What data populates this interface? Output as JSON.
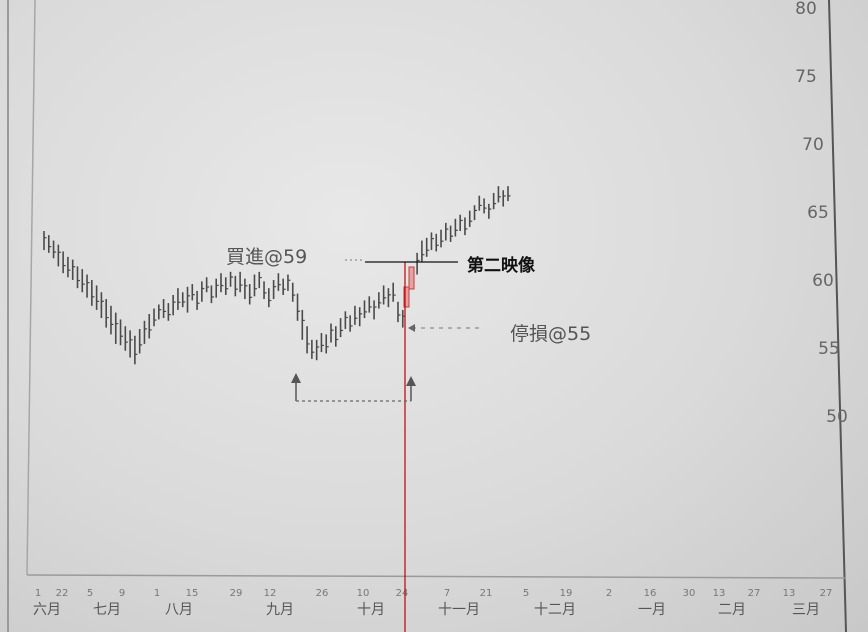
{
  "chart_data": {
    "type": "bar",
    "subtype": "daily price bars (high-low range)",
    "title": "",
    "xlabel": "",
    "ylabel": "",
    "ylim": [
      47,
      82
    ],
    "y_ticks": [
      50,
      55,
      60,
      65,
      70,
      75,
      80
    ],
    "x_tick_labels": [
      "1",
      "22",
      "5",
      "9",
      "1",
      "15",
      "29",
      "12",
      "26",
      "10",
      "24",
      "7",
      "21",
      "5",
      "19",
      "2",
      "16",
      "30",
      "13",
      "27",
      "13",
      "27"
    ],
    "month_labels": [
      "六月",
      "七月",
      "八月",
      "九月",
      "十月",
      "十一月",
      "十二月",
      "一月",
      "二月",
      "三月"
    ],
    "series": [
      {
        "values": [
          [
            63.6,
            62.2
          ],
          [
            63.3,
            62.0
          ],
          [
            62.9,
            61.6
          ],
          [
            62.6,
            61.0
          ],
          [
            62.1,
            60.5
          ],
          [
            61.7,
            60.2
          ],
          [
            61.5,
            60.0
          ],
          [
            61.0,
            59.4
          ],
          [
            60.8,
            59.1
          ],
          [
            60.4,
            58.7
          ],
          [
            60.0,
            58.1
          ],
          [
            59.6,
            57.8
          ],
          [
            59.1,
            57.2
          ],
          [
            58.6,
            56.5
          ],
          [
            58.1,
            56.0
          ],
          [
            57.6,
            55.3
          ],
          [
            57.1,
            55.2
          ],
          [
            56.6,
            54.8
          ],
          [
            56.3,
            54.3
          ],
          [
            55.9,
            53.8
          ],
          [
            56.4,
            54.6
          ],
          [
            57.0,
            55.3
          ],
          [
            57.5,
            55.7
          ],
          [
            57.9,
            56.6
          ],
          [
            58.2,
            57.1
          ],
          [
            58.6,
            57.2
          ],
          [
            58.3,
            57.0
          ],
          [
            58.9,
            57.4
          ],
          [
            59.4,
            57.8
          ],
          [
            59.1,
            58.0
          ],
          [
            59.5,
            57.6
          ],
          [
            59.7,
            58.5
          ],
          [
            59.2,
            57.8
          ],
          [
            59.9,
            58.4
          ],
          [
            60.2,
            59.1
          ],
          [
            59.6,
            58.3
          ],
          [
            60.1,
            58.7
          ],
          [
            60.5,
            59.1
          ],
          [
            60.2,
            58.9
          ],
          [
            60.6,
            59.5
          ],
          [
            60.3,
            58.8
          ],
          [
            60.6,
            59.1
          ],
          [
            60.1,
            58.6
          ],
          [
            59.7,
            58.2
          ],
          [
            60.4,
            58.8
          ],
          [
            60.6,
            59.4
          ],
          [
            59.9,
            58.6
          ],
          [
            59.4,
            58.0
          ],
          [
            60.0,
            58.6
          ],
          [
            60.5,
            59.2
          ],
          [
            60.1,
            58.9
          ],
          [
            60.4,
            59.2
          ],
          [
            59.8,
            58.4
          ],
          [
            59.0,
            57.0
          ],
          [
            57.8,
            55.6
          ],
          [
            56.6,
            54.6
          ],
          [
            55.6,
            54.2
          ],
          [
            55.6,
            54.1
          ],
          [
            56.1,
            54.7
          ],
          [
            56.0,
            54.6
          ],
          [
            56.8,
            55.4
          ],
          [
            56.6,
            55.1
          ],
          [
            57.2,
            55.8
          ],
          [
            57.7,
            56.4
          ],
          [
            57.4,
            56.2
          ],
          [
            58.1,
            56.7
          ],
          [
            58.0,
            56.6
          ],
          [
            58.5,
            57.2
          ],
          [
            58.8,
            57.6
          ],
          [
            58.5,
            57.1
          ],
          [
            59.1,
            57.9
          ],
          [
            59.6,
            58.2
          ],
          [
            59.4,
            58.0
          ],
          [
            59.8,
            58.4
          ],
          [
            58.4,
            56.9
          ],
          [
            57.8,
            56.5
          ],
          [
            60.3,
            58.6
          ],
          [
            61.5,
            59.6
          ],
          [
            62.0,
            60.4
          ],
          [
            62.9,
            61.3
          ],
          [
            63.1,
            61.7
          ],
          [
            63.5,
            62.2
          ],
          [
            63.4,
            62.1
          ],
          [
            63.7,
            62.4
          ],
          [
            64.2,
            62.9
          ],
          [
            64.0,
            62.8
          ],
          [
            64.5,
            63.2
          ],
          [
            64.8,
            63.6
          ],
          [
            64.6,
            63.3
          ],
          [
            65.1,
            63.9
          ],
          [
            65.5,
            64.4
          ],
          [
            66.2,
            65.1
          ],
          [
            66.0,
            64.9
          ],
          [
            65.6,
            64.5
          ],
          [
            66.4,
            65.2
          ],
          [
            66.9,
            65.7
          ],
          [
            66.6,
            65.4
          ],
          [
            66.9,
            65.8
          ]
        ]
      }
    ],
    "annotations": {
      "buy": "買進@59",
      "second_image": "第二映像",
      "stop": "停損@55"
    },
    "grid": false,
    "legend": "none"
  }
}
